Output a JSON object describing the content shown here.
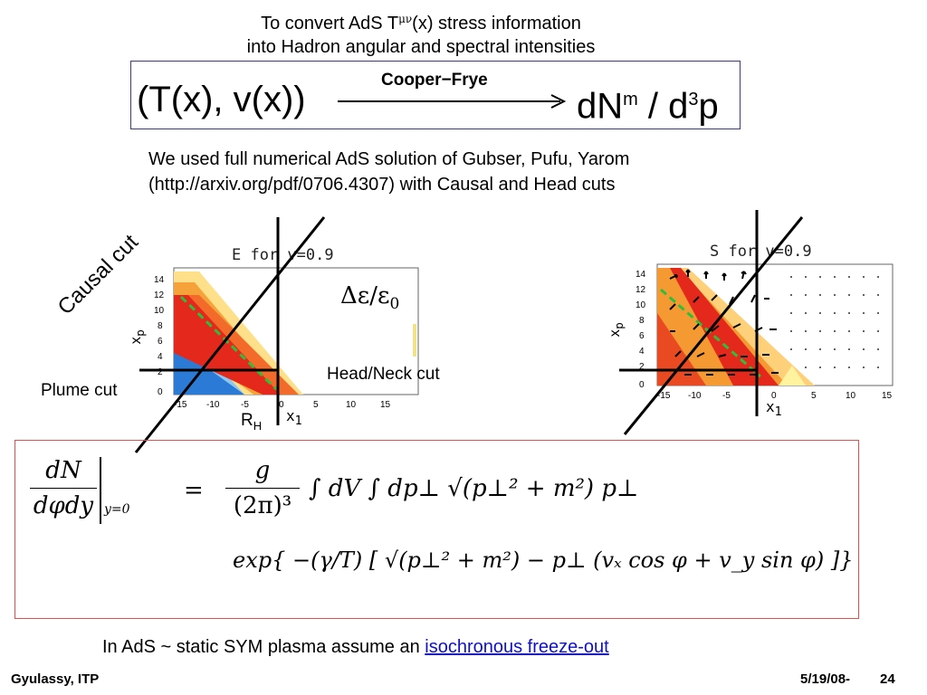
{
  "title": {
    "line1_prefix": "To convert AdS T",
    "line1_sup": "μν",
    "line1_suffix": "(x) stress information",
    "line2": "into Hadron angular and spectral intensities"
  },
  "cooper_frye": {
    "lhs": "(T(x), v(x))",
    "arrow_label": "Cooper−Frye",
    "rhs_base": "dN",
    "rhs_sup": "m",
    "rhs_mid": " / d",
    "rhs_sup2": "3",
    "rhs_end": "p"
  },
  "paragraph": {
    "line1": "We used full numerical AdS solution of Gubser, Pufu, Yarom",
    "line2": "(http://arxiv.org/pdf/0706.4307) with Causal and Head cuts"
  },
  "left_plot": {
    "title": "E for v=0.9",
    "xlabel": "x",
    "xlabel_sub": "1",
    "ylabel": "x",
    "ylabel_sub": "p",
    "xticks": [
      "-15",
      "-10",
      "-5",
      "0",
      "5",
      "10",
      "15"
    ],
    "yticks": [
      "14",
      "12",
      "10",
      "8",
      "6",
      "4",
      "2",
      "0"
    ],
    "ratio_label": "Δε/ε",
    "ratio_sub": "0"
  },
  "right_plot": {
    "title": "S for v=0.9",
    "xlabel": "x",
    "xlabel_sub": "1",
    "ylabel": "x",
    "ylabel_sub": "p",
    "xticks": [
      "-15",
      "-10",
      "-5",
      "0",
      "5",
      "10",
      "15"
    ],
    "yticks": [
      "14",
      "12",
      "10",
      "8",
      "6",
      "4",
      "2",
      "0"
    ]
  },
  "annotations": {
    "causal_cut": "Causal cut",
    "plume_cut": "Plume cut",
    "head_neck_cut": "Head/Neck cut",
    "rh": "R",
    "rh_sub": "H"
  },
  "formula": {
    "lhs_num": "dN",
    "lhs_den": "dφdy",
    "eval": "y=0",
    "equals": "=",
    "prefactor_num": "g",
    "prefactor_den": "(2π)³",
    "integrals": "∫ dV ∫ dp⊥ √(p⊥² + m²) p⊥",
    "exp_line": "exp{ −(γ/T) [ √(p⊥² + m²) − p⊥ (vₓ cos φ + v_y sin φ) ]}"
  },
  "note": {
    "prefix": "In AdS ~ static SYM plasma assume an ",
    "link": "isochronous freeze-out"
  },
  "footer": {
    "left": "Gyulassy, ITP",
    "date": "5/19/08-",
    "page": "24"
  }
}
